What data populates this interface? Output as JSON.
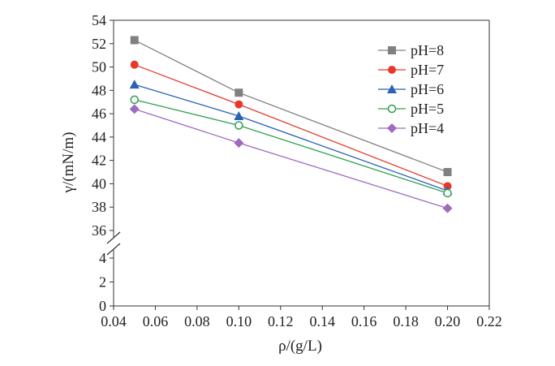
{
  "chart_data": {
    "type": "line",
    "xlabel": "ρ/(g/L)",
    "ylabel": "γ/(mN/m)",
    "xlim": [
      0.04,
      0.22
    ],
    "x_ticks": [
      "0.04",
      "0.06",
      "0.08",
      "0.10",
      "0.12",
      "0.14",
      "0.16",
      "0.18",
      "0.20",
      "0.22"
    ],
    "y_ticks_upper": [
      "36",
      "38",
      "40",
      "42",
      "44",
      "46",
      "48",
      "50",
      "52",
      "54"
    ],
    "y_ticks_lower": [
      "0",
      "2",
      "4"
    ],
    "y_axis_break": true,
    "ylim_upper": [
      36,
      54
    ],
    "ylim_lower": [
      0,
      4
    ],
    "grid": false,
    "legend_position": "top-right",
    "x": [
      0.05,
      0.1,
      0.2
    ],
    "series": [
      {
        "name": "pH=8",
        "values": [
          52.3,
          47.8,
          41.0
        ],
        "color": "#808080",
        "marker": "square"
      },
      {
        "name": "pH=7",
        "values": [
          50.2,
          46.8,
          39.8
        ],
        "color": "#e8382e",
        "marker": "circle"
      },
      {
        "name": "pH=6",
        "values": [
          48.5,
          45.8,
          39.4
        ],
        "color": "#2a62b8",
        "marker": "triangle"
      },
      {
        "name": "pH=5",
        "values": [
          47.2,
          45.0,
          39.2
        ],
        "color": "#30a050",
        "marker": "open-circle"
      },
      {
        "name": "pH=4",
        "values": [
          46.4,
          43.5,
          37.9
        ],
        "color": "#9f6bc0",
        "marker": "diamond"
      }
    ]
  }
}
